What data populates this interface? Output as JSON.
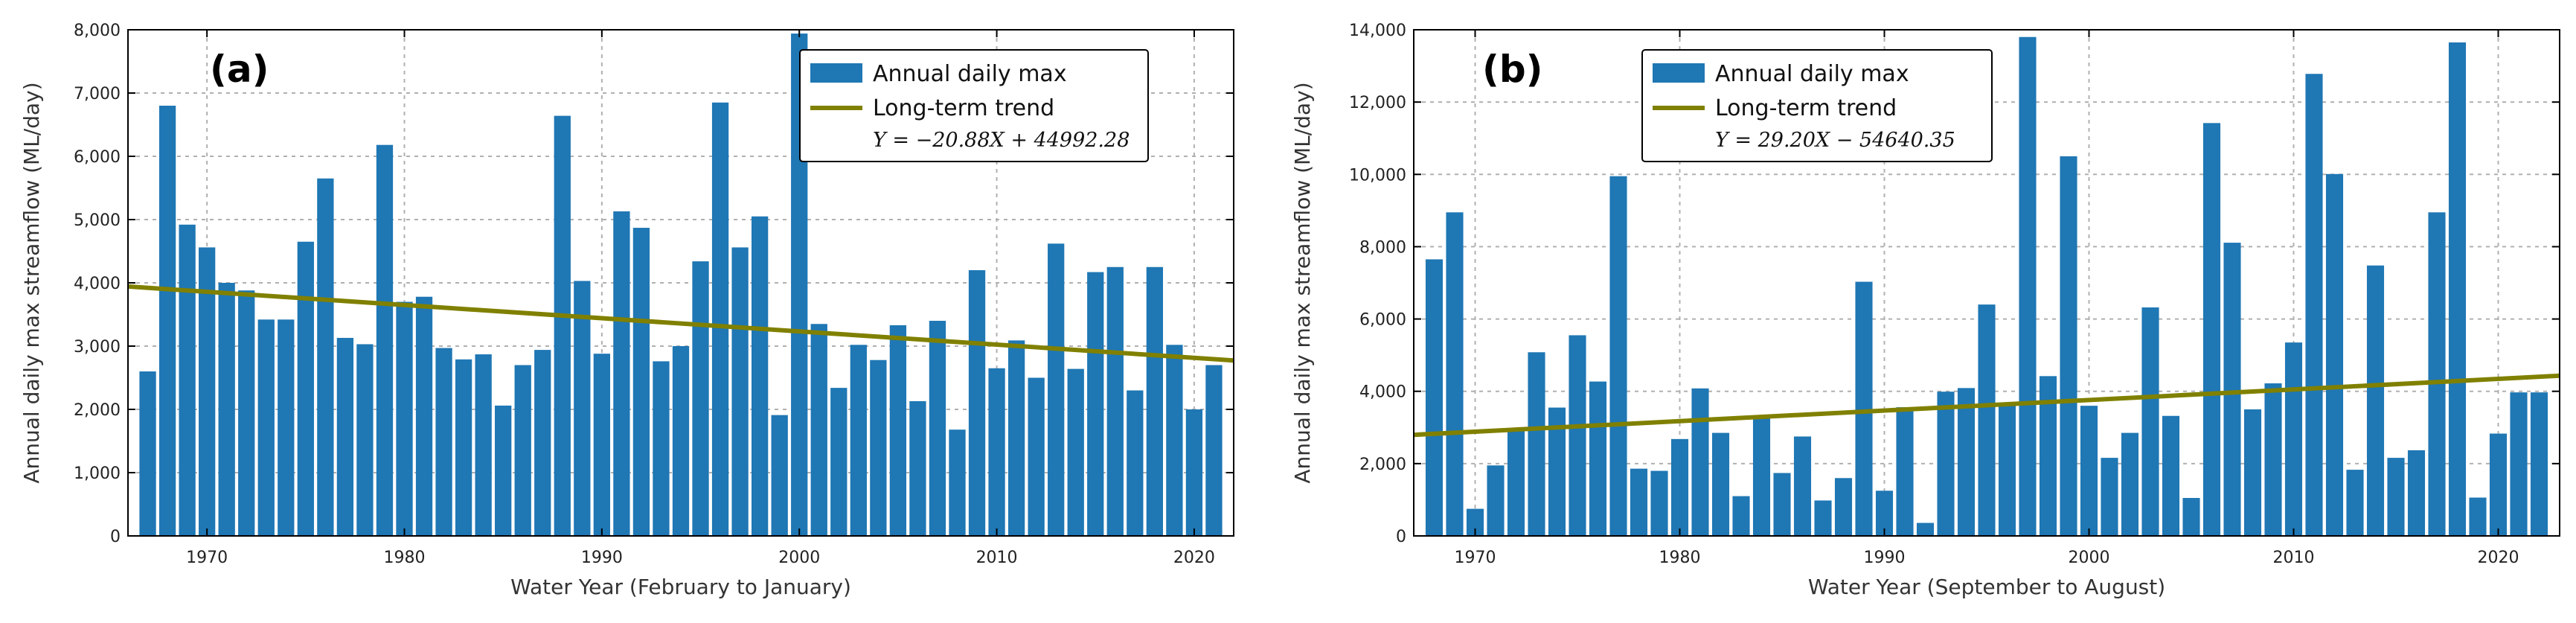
{
  "chart_data": [
    {
      "type": "bar",
      "panel_label": "(a)",
      "xlabel": "Water Year (February to January)",
      "ylabel": "Annual daily max streamflow (ML/day)",
      "xlim": [
        1966,
        2022
      ],
      "ylim": [
        0,
        8000
      ],
      "yticks": [
        0,
        1000,
        2000,
        3000,
        4000,
        5000,
        6000,
        7000,
        8000
      ],
      "ytick_labels": [
        "0",
        "1,000",
        "2,000",
        "3,000",
        "4,000",
        "5,000",
        "6,000",
        "7,000",
        "8,000"
      ],
      "xticks": [
        1970,
        1980,
        1990,
        2000,
        2010,
        2020
      ],
      "xtick_labels": [
        "1970",
        "1980",
        "1990",
        "2000",
        "2010",
        "2020"
      ],
      "grid": true,
      "legend_position": "top-right",
      "bar_color": "#1f77b4",
      "trend_color": "#808000",
      "series": [
        {
          "name": "Annual daily max",
          "x": [
            1967,
            1968,
            1969,
            1970,
            1971,
            1972,
            1973,
            1974,
            1975,
            1976,
            1977,
            1978,
            1979,
            1980,
            1981,
            1982,
            1983,
            1984,
            1985,
            1986,
            1987,
            1988,
            1989,
            1990,
            1991,
            1992,
            1993,
            1994,
            1995,
            1996,
            1997,
            1998,
            1999,
            2000,
            2001,
            2002,
            2003,
            2004,
            2005,
            2006,
            2007,
            2008,
            2009,
            2010,
            2011,
            2012,
            2013,
            2014,
            2015,
            2016,
            2017,
            2018,
            2019,
            2020,
            2021
          ],
          "values": [
            2600,
            6800,
            4920,
            4560,
            4000,
            3880,
            3420,
            3420,
            4650,
            5650,
            3130,
            3030,
            6180,
            3700,
            3780,
            2970,
            2790,
            2870,
            2060,
            2700,
            2940,
            6640,
            4030,
            2880,
            5130,
            4870,
            2760,
            3000,
            4340,
            6850,
            4560,
            5050,
            1910,
            7940,
            3350,
            2340,
            3020,
            2780,
            3330,
            2130,
            3400,
            1680,
            4200,
            2650,
            3090,
            2500,
            4620,
            2640,
            4170,
            4250,
            2300,
            4250,
            3020,
            2000,
            2700
          ]
        },
        {
          "name": "Long-term trend",
          "equation": "Y = −20.88X + 44992.28",
          "slope": -20.88,
          "intercept": 44992.28
        }
      ]
    },
    {
      "type": "bar",
      "panel_label": "(b)",
      "xlabel": "Water Year (September to August)",
      "ylabel": "Annual daily max streamflow (ML/day)",
      "xlim": [
        1967,
        2023
      ],
      "ylim": [
        0,
        14000
      ],
      "yticks": [
        0,
        2000,
        4000,
        6000,
        8000,
        10000,
        12000,
        14000
      ],
      "ytick_labels": [
        "0",
        "2,000",
        "4,000",
        "6,000",
        "8,000",
        "10,000",
        "12,000",
        "14,000"
      ],
      "xticks": [
        1970,
        1980,
        1990,
        2000,
        2010,
        2020
      ],
      "xtick_labels": [
        "1970",
        "1980",
        "1990",
        "2000",
        "2010",
        "2020"
      ],
      "grid": true,
      "legend_position": "top-center",
      "bar_color": "#1f77b4",
      "trend_color": "#808000",
      "series": [
        {
          "name": "Annual daily max",
          "x": [
            1968,
            1969,
            1970,
            1971,
            1972,
            1973,
            1974,
            1975,
            1976,
            1977,
            1978,
            1979,
            1980,
            1981,
            1982,
            1983,
            1984,
            1985,
            1986,
            1987,
            1988,
            1989,
            1990,
            1991,
            1992,
            1993,
            1994,
            1995,
            1996,
            1997,
            1998,
            1999,
            2000,
            2001,
            2002,
            2003,
            2004,
            2005,
            2006,
            2007,
            2008,
            2009,
            2010,
            2011,
            2012,
            2013,
            2014,
            2015,
            2016,
            2017,
            2018,
            2019,
            2020,
            2021,
            2022
          ],
          "values": [
            7650,
            8950,
            750,
            1950,
            2950,
            5080,
            3550,
            5550,
            4270,
            9950,
            1860,
            1800,
            2680,
            4080,
            2850,
            1100,
            3260,
            1740,
            2750,
            980,
            1600,
            7030,
            1250,
            3560,
            360,
            3990,
            4090,
            6400,
            3600,
            13800,
            4420,
            10500,
            3600,
            2160,
            2850,
            6320,
            3320,
            1050,
            11420,
            8110,
            3500,
            4220,
            5350,
            12780,
            10010,
            1830,
            7480,
            2160,
            2370,
            8950,
            13650,
            1060,
            2830,
            3970,
            3970
          ]
        },
        {
          "name": "Long-term trend",
          "equation": "Y = 29.20X − 54640.35",
          "slope": 29.2,
          "intercept": -54640.35
        }
      ]
    }
  ]
}
